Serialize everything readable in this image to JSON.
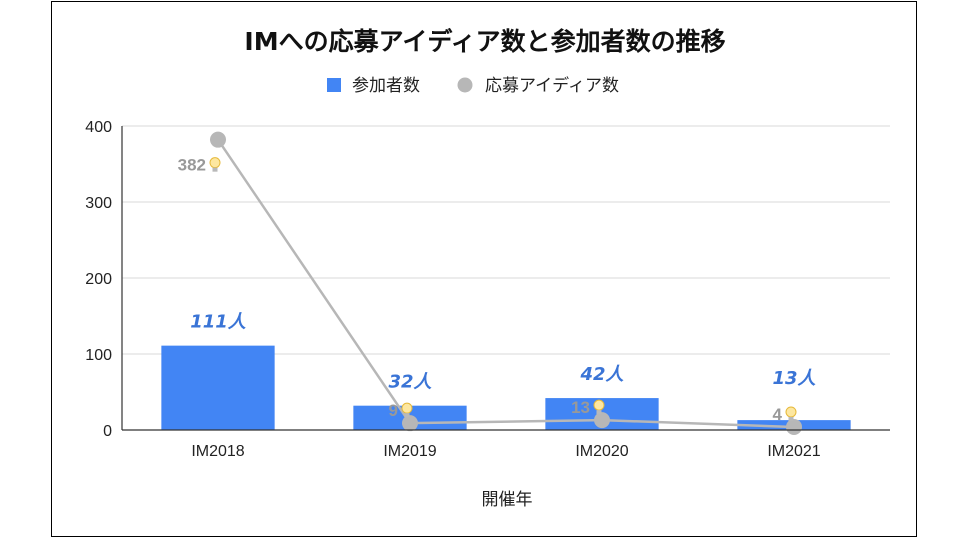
{
  "chart_data": {
    "type": "bar",
    "title": "IMへの応募アイディア数と参加者数の推移",
    "xlabel": "開催年",
    "ylabel": "",
    "ylim": [
      0,
      400
    ],
    "yticks": [
      0,
      100,
      200,
      300,
      400
    ],
    "categories": [
      "IM2018",
      "IM2019",
      "IM2020",
      "IM2021"
    ],
    "series": [
      {
        "name": "参加者数",
        "type": "bar",
        "color": "#4285f4",
        "values": [
          111,
          32,
          42,
          13
        ],
        "labels": [
          "111人",
          "32人",
          "42人",
          "13人"
        ],
        "label_color": "#3a74d6"
      },
      {
        "name": "応募アイディア数",
        "type": "line",
        "color": "#b7b7b7",
        "values": [
          382,
          9,
          13,
          4
        ],
        "labels": [
          "382",
          "9",
          "13",
          "4"
        ],
        "label_icon": "lightbulb-icon"
      }
    ],
    "legend_position": "top-center",
    "grid": true
  }
}
